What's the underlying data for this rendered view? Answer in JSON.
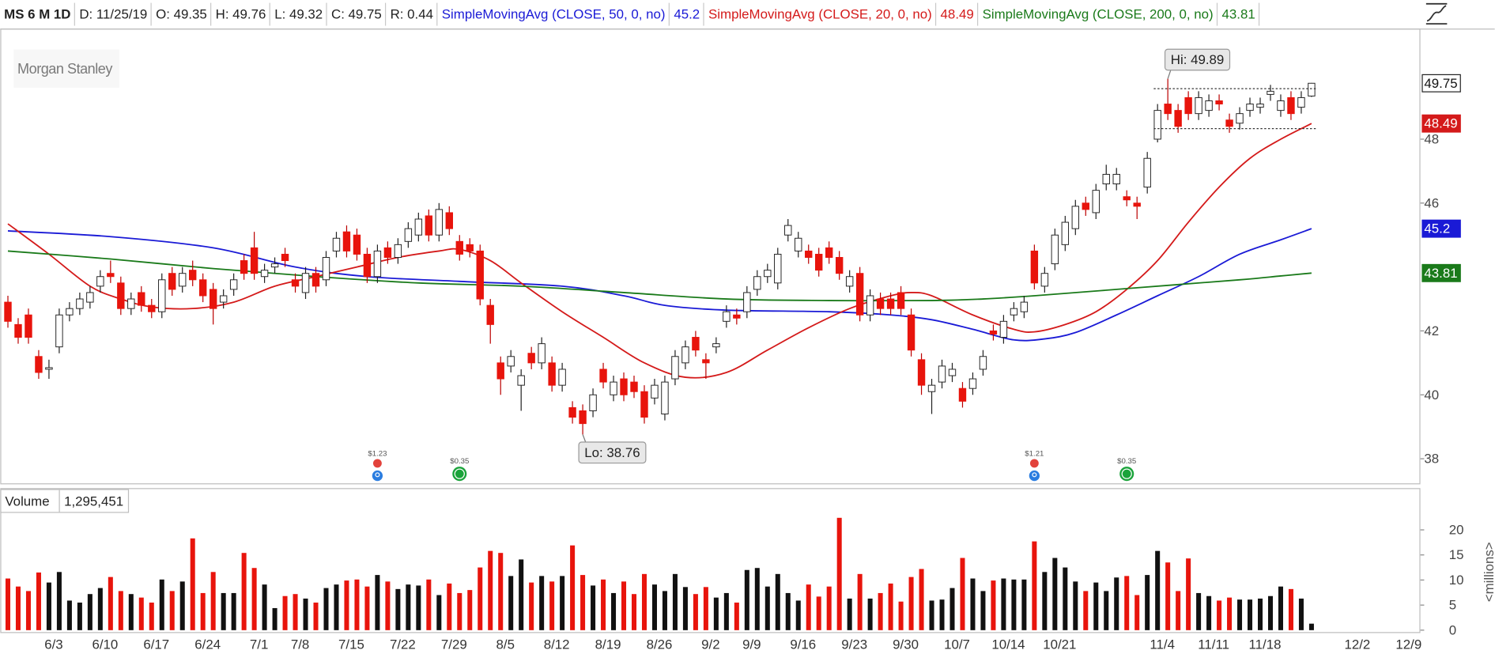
{
  "chart_data": {
    "type": "candlestick",
    "header": [
      "MS 6 M 1D",
      "D: 11/25/19",
      "O: 49.35",
      "H: 49.76",
      "L: 49.32",
      "C: 49.75",
      "R: 0.44"
    ],
    "watermark": "Morgan Stanley",
    "categories": [
      null,
      null,
      null,
      null,
      "6/3",
      null,
      null,
      null,
      null,
      "6/10",
      null,
      null,
      null,
      null,
      "6/17",
      null,
      null,
      null,
      null,
      "6/24",
      null,
      null,
      null,
      null,
      "7/1",
      null,
      null,
      null,
      "7/8",
      null,
      null,
      null,
      null,
      "7/15",
      null,
      null,
      null,
      null,
      "7/22",
      null,
      null,
      null,
      null,
      "7/29",
      null,
      null,
      null,
      null,
      "8/5",
      null,
      null,
      null,
      null,
      "8/12",
      null,
      null,
      null,
      null,
      "8/19",
      null,
      null,
      null,
      null,
      "8/26",
      null,
      null,
      null,
      null,
      "9/2",
      null,
      null,
      null,
      "9/9",
      null,
      null,
      null,
      null,
      "9/16",
      null,
      null,
      null,
      null,
      "9/23",
      null,
      null,
      null,
      null,
      "9/30",
      null,
      null,
      null,
      null,
      "10/7",
      null,
      null,
      null,
      null,
      "10/14",
      null,
      null,
      null,
      null,
      "10/21",
      null,
      null,
      null,
      null,
      null,
      null,
      null,
      null,
      null,
      "11/4",
      null,
      null,
      null,
      null,
      "11/11",
      null,
      null,
      null,
      null,
      "11/18",
      null,
      null,
      null,
      null,
      null,
      null,
      null,
      null,
      "12/2",
      null,
      null,
      null,
      null,
      "12/9"
    ],
    "open": [
      42.9,
      42.2,
      42.5,
      41.2,
      40.8,
      41.5,
      42.5,
      42.7,
      42.9,
      43.4,
      43.8,
      43.5,
      42.7,
      43.2,
      42.8,
      42.6,
      43.8,
      43.4,
      43.9,
      43.6,
      43.3,
      42.9,
      43.3,
      44.2,
      44.6,
      43.7,
      44.0,
      44.4,
      43.6,
      43.2,
      43.8,
      43.6,
      44.5,
      45.1,
      45.0,
      44.4,
      43.7,
      44.6,
      44.3,
      44.8,
      45.0,
      45.6,
      45.0,
      45.7,
      44.8,
      44.7,
      44.5,
      42.8,
      41.0,
      40.9,
      40.3,
      41.3,
      41.0,
      41.0,
      40.3,
      39.6,
      39.5,
      39.5,
      40.8,
      40.0,
      40.5,
      40.4,
      40.1,
      39.9,
      39.4,
      40.5,
      41.0,
      41.8,
      41.1,
      41.5,
      42.3,
      42.5,
      42.6,
      43.3,
      43.7,
      43.5,
      45.0,
      44.5,
      44.5,
      44.4,
      44.6,
      44.3,
      43.4,
      43.8,
      42.5,
      43.0,
      43.0,
      43.2,
      42.5,
      41.1,
      40.1,
      40.4,
      40.6,
      40.2,
      40.2,
      40.8,
      42.0,
      41.8,
      42.5,
      42.6,
      44.5,
      43.4,
      44.1,
      44.7,
      45.2,
      46.0,
      45.7,
      46.6,
      46.6,
      46.2,
      46.0,
      46.5,
      48.0,
      49.1,
      48.9,
      49.3,
      48.8,
      48.9,
      49.2,
      48.6,
      48.5,
      48.9,
      49.0,
      49.4,
      48.9,
      49.3,
      49.0,
      49.35,
      null,
      null,
      null,
      null,
      null,
      null,
      null,
      null,
      null
    ],
    "high": [
      43.1,
      42.4,
      42.7,
      41.4,
      41.1,
      42.7,
      42.9,
      43.2,
      43.4,
      43.9,
      44.2,
      43.7,
      43.2,
      43.4,
      43.0,
      43.8,
      44.0,
      44.0,
      44.2,
      43.8,
      43.5,
      43.3,
      43.8,
      44.4,
      45.1,
      44.1,
      44.3,
      44.6,
      43.8,
      44.0,
      44.0,
      44.5,
      45.1,
      45.3,
      45.2,
      44.6,
      44.7,
      44.8,
      44.9,
      45.4,
      45.7,
      45.8,
      46.0,
      45.9,
      45.0,
      44.9,
      44.7,
      43.0,
      41.2,
      41.4,
      40.8,
      41.5,
      41.8,
      41.2,
      41.0,
      39.8,
      39.7,
      40.2,
      41.0,
      40.6,
      40.7,
      40.6,
      40.3,
      40.5,
      40.6,
      41.4,
      41.7,
      42.0,
      41.3,
      41.8,
      42.8,
      42.7,
      43.4,
      43.9,
      44.1,
      44.6,
      45.5,
      45.1,
      44.7,
      44.6,
      44.8,
      44.5,
      43.9,
      44.0,
      43.3,
      43.2,
      43.2,
      43.4,
      42.7,
      41.3,
      40.5,
      41.1,
      41.0,
      40.4,
      40.7,
      41.4,
      42.2,
      42.5,
      42.9,
      43.1,
      44.7,
      44.0,
      45.2,
      45.6,
      46.1,
      46.2,
      46.6,
      47.2,
      47.1,
      46.4,
      46.2,
      47.6,
      49.1,
      49.89,
      49.1,
      49.5,
      49.5,
      49.4,
      49.4,
      48.8,
      49.0,
      49.3,
      49.3,
      49.7,
      49.4,
      49.5,
      49.5,
      49.76,
      null,
      null,
      null,
      null,
      null,
      null,
      null,
      null,
      null
    ],
    "low": [
      42.1,
      41.6,
      41.6,
      40.5,
      40.5,
      41.3,
      42.3,
      42.5,
      42.7,
      43.2,
      43.5,
      42.5,
      42.5,
      42.6,
      42.4,
      42.4,
      43.1,
      43.2,
      43.4,
      42.9,
      42.2,
      42.7,
      43.1,
      43.6,
      43.6,
      43.5,
      43.8,
      44.0,
      43.2,
      43.0,
      43.2,
      43.4,
      44.3,
      44.3,
      44.2,
      43.5,
      43.5,
      44.1,
      44.1,
      44.6,
      44.8,
      44.8,
      44.8,
      45.0,
      44.2,
      44.3,
      42.8,
      41.6,
      40.0,
      40.7,
      39.5,
      40.8,
      40.8,
      40.1,
      40.1,
      39.1,
      38.76,
      39.3,
      40.2,
      39.8,
      39.8,
      39.9,
      39.1,
      39.7,
      39.2,
      40.3,
      40.8,
      41.2,
      40.5,
      41.3,
      42.1,
      42.2,
      42.4,
      43.1,
      43.5,
      43.3,
      44.8,
      44.3,
      44.1,
      43.7,
      44.1,
      43.6,
      43.2,
      42.3,
      42.3,
      42.5,
      42.5,
      42.5,
      41.2,
      40.0,
      39.4,
      40.2,
      40.4,
      39.6,
      40.0,
      40.6,
      41.7,
      41.6,
      42.3,
      42.4,
      43.3,
      43.2,
      43.9,
      44.5,
      45.0,
      45.6,
      45.5,
      46.4,
      46.4,
      45.9,
      45.5,
      46.3,
      47.9,
      48.6,
      48.2,
      48.6,
      48.6,
      48.7,
      48.9,
      48.2,
      48.3,
      48.7,
      48.8,
      49.2,
      48.7,
      48.6,
      48.8,
      49.32,
      null,
      null,
      null,
      null,
      null,
      null,
      null,
      null,
      null
    ],
    "close": [
      42.3,
      41.8,
      41.8,
      40.7,
      40.85,
      42.5,
      42.7,
      43.0,
      43.2,
      43.7,
      43.7,
      42.7,
      43.0,
      42.8,
      42.6,
      43.6,
      43.3,
      43.8,
      43.6,
      43.1,
      42.7,
      43.1,
      43.6,
      43.8,
      43.8,
      43.9,
      44.1,
      44.2,
      43.4,
      43.8,
      43.4,
      44.3,
      44.9,
      44.5,
      44.4,
      43.7,
      44.5,
      44.3,
      44.7,
      45.2,
      45.5,
      45.0,
      45.8,
      45.2,
      44.4,
      44.5,
      43.0,
      42.2,
      40.5,
      41.2,
      40.6,
      41.0,
      41.6,
      40.3,
      40.8,
      39.3,
      39.1,
      40.0,
      40.4,
      40.4,
      40.0,
      40.1,
      39.3,
      40.3,
      40.4,
      41.2,
      41.5,
      41.4,
      41.0,
      41.6,
      42.6,
      42.4,
      43.2,
      43.7,
      43.9,
      44.4,
      45.3,
      44.9,
      44.3,
      43.9,
      44.3,
      43.8,
      43.7,
      42.5,
      43.1,
      42.7,
      42.7,
      42.7,
      41.4,
      40.3,
      40.3,
      40.9,
      40.8,
      39.8,
      40.5,
      41.2,
      41.9,
      42.3,
      42.7,
      42.9,
      43.5,
      43.8,
      45.0,
      45.4,
      45.9,
      45.8,
      46.4,
      46.9,
      46.9,
      46.1,
      45.9,
      47.4,
      48.9,
      48.8,
      48.4,
      48.8,
      49.3,
      49.2,
      49.1,
      48.4,
      48.8,
      49.1,
      49.1,
      49.5,
      49.2,
      48.8,
      49.3,
      49.75,
      null,
      null,
      null,
      null,
      null,
      null,
      null,
      null,
      null
    ],
    "up_color": "#ffffff",
    "down_color": "#e8140c",
    "ylim": [
      37.2,
      51.46
    ],
    "yticks": [
      38,
      40,
      42,
      46,
      48
    ],
    "series": [
      {
        "name": "SimpleMovingAvg (CLOSE, 50, 0, no)",
        "color": "#1a1ad6",
        "x": [
          0,
          10,
          20,
          28,
          35,
          44,
          54,
          60,
          64,
          70,
          80,
          86,
          90,
          94,
          98,
          101,
          104,
          108,
          112,
          116,
          120,
          124,
          127
        ],
        "values": [
          45.13,
          44.95,
          44.6,
          44.0,
          43.7,
          43.55,
          43.4,
          43.1,
          42.8,
          42.65,
          42.6,
          42.5,
          42.35,
          42.05,
          41.72,
          41.75,
          41.95,
          42.5,
          43.1,
          43.7,
          44.4,
          44.85,
          45.2
        ]
      },
      {
        "name": "SimpleMovingAvg (CLOSE, 20, 0, no)",
        "color": "#d41a1a",
        "x": [
          0,
          4,
          8,
          11,
          14,
          18,
          22,
          26,
          30,
          34,
          38,
          42,
          44,
          47,
          50,
          54,
          58,
          62,
          66,
          70,
          74,
          78,
          82,
          86,
          88,
          90,
          94,
          98,
          100,
          103,
          106,
          109,
          112,
          115,
          118,
          121,
          124,
          127
        ],
        "values": [
          45.35,
          44.4,
          43.4,
          43.0,
          42.75,
          42.7,
          42.9,
          43.4,
          43.7,
          44.0,
          44.3,
          44.5,
          44.55,
          44.2,
          43.5,
          42.6,
          41.8,
          41.0,
          40.55,
          40.7,
          41.4,
          42.1,
          42.7,
          43.1,
          43.2,
          43.1,
          42.5,
          42.05,
          41.97,
          42.2,
          42.6,
          43.3,
          44.2,
          45.4,
          46.5,
          47.4,
          48.0,
          48.49
        ]
      },
      {
        "name": "SimpleMovingAvg (CLOSE, 200, 0, no)",
        "color": "#1a7a1a",
        "x": [
          0,
          10,
          20,
          30,
          40,
          50,
          60,
          70,
          80,
          90,
          95,
          100,
          110,
          120,
          124,
          127
        ],
        "values": [
          44.5,
          44.25,
          43.95,
          43.7,
          43.5,
          43.4,
          43.2,
          43.0,
          42.95,
          42.95,
          43.0,
          43.1,
          43.35,
          43.6,
          43.72,
          43.81
        ]
      }
    ],
    "levels": [
      49.58,
      48.33
    ],
    "callouts": [
      {
        "label": "Hi: 49.89",
        "index": 113,
        "value": 49.89
      },
      {
        "label": "Lo: 38.76",
        "index": 56,
        "value": 38.76
      }
    ],
    "events": [
      {
        "label": "$1.23",
        "kind": "earnings",
        "index": 36
      },
      {
        "label": "$0.35",
        "kind": "dividend",
        "index": 44
      },
      {
        "label": "$1.21",
        "kind": "earnings",
        "index": 100
      },
      {
        "label": "$0.35",
        "kind": "dividend",
        "index": 109
      }
    ],
    "volume": {
      "label": "Volume",
      "last_label": "1,295,451",
      "axis_label": "<millions>",
      "ylim": [
        0,
        23
      ],
      "yticks": [
        0,
        5,
        10,
        15,
        20
      ],
      "values": [
        10.3,
        8.7,
        7.8,
        11.5,
        9.5,
        11.6,
        5.9,
        5.5,
        7.2,
        8.4,
        10.6,
        7.8,
        7.2,
        6.5,
        5.5,
        10.1,
        7.8,
        9.7,
        18.3,
        7.4,
        11.6,
        7.4,
        7.4,
        15.4,
        12.4,
        9.1,
        4.4,
        6.8,
        7.2,
        6.3,
        5.5,
        8.4,
        9.1,
        9.9,
        10.1,
        8.7,
        11.0,
        9.7,
        8.2,
        9.1,
        8.9,
        10.1,
        7.0,
        9.3,
        7.4,
        8.0,
        12.5,
        15.8,
        15.4,
        10.8,
        14.1,
        9.5,
        10.8,
        9.7,
        10.8,
        16.9,
        11.0,
        8.9,
        10.1,
        7.4,
        9.7,
        7.2,
        11.2,
        9.1,
        7.8,
        11.2,
        8.6,
        7.2,
        8.6,
        6.5,
        7.4,
        5.5,
        12.0,
        12.4,
        8.7,
        11.2,
        7.4,
        5.9,
        9.1,
        6.7,
        8.7,
        22.4,
        6.3,
        11.2,
        6.3,
        7.4,
        9.3,
        5.7,
        10.6,
        12.2,
        5.9,
        6.1,
        8.4,
        14.4,
        10.3,
        7.8,
        9.9,
        10.3,
        10.1,
        10.1,
        17.7,
        11.6,
        14.4,
        12.5,
        9.7,
        7.8,
        9.5,
        7.8,
        10.5,
        10.8,
        7.0,
        11.0,
        15.8,
        13.5,
        7.8,
        14.3,
        7.4,
        6.8,
        5.9,
        6.5,
        6.1,
        6.1,
        6.3,
        6.8,
        8.7,
        8.2,
        6.3,
        1.295451,
        null,
        null,
        null,
        null,
        null,
        null,
        null,
        null,
        null
      ]
    }
  }
}
